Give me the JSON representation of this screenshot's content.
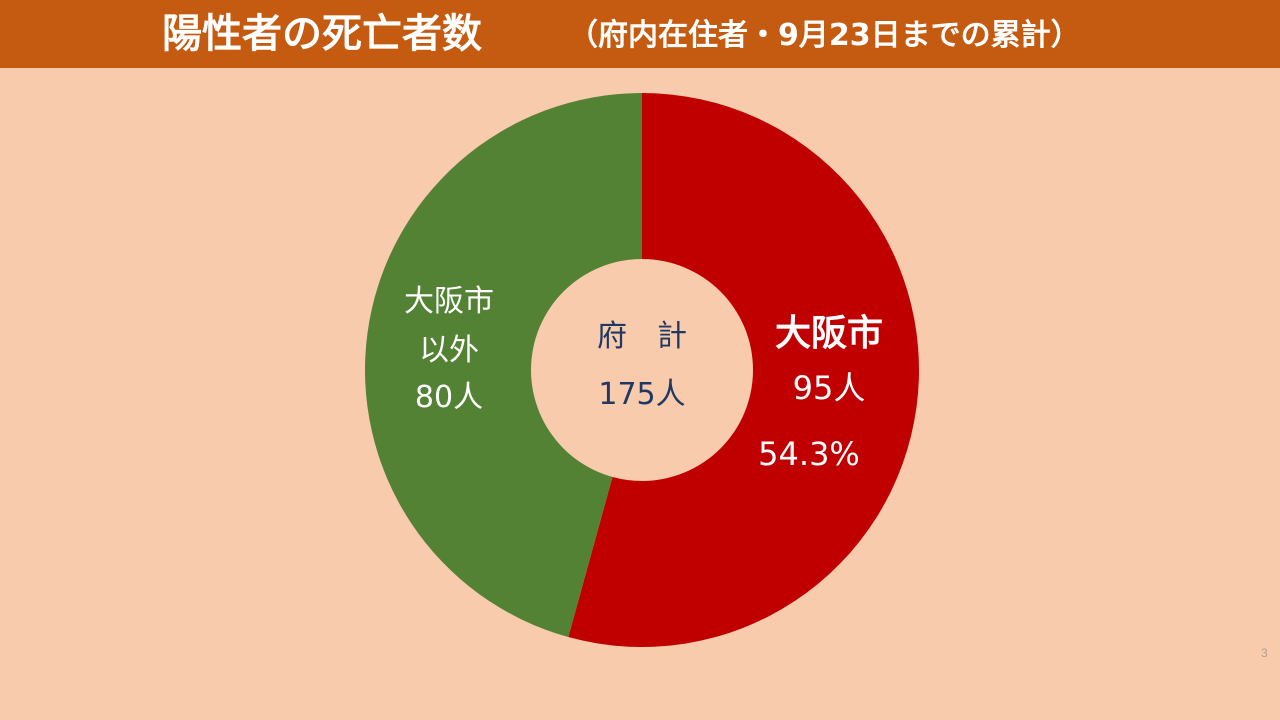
{
  "title": {
    "main": "陽性者の死亡者数",
    "sub": "（府内在住者・9月23日までの累計）"
  },
  "chart_data": {
    "type": "pie",
    "style": "donut",
    "total": {
      "label": "府　計",
      "value": 175,
      "value_text": "175人"
    },
    "slices": [
      {
        "name": "大阪市",
        "value": 95,
        "value_text": "95人",
        "percent_text": "54.3%",
        "color": "#c00000"
      },
      {
        "name_lines": [
          "大阪市",
          "以外"
        ],
        "value": 80,
        "value_text": "80人",
        "color": "#548235"
      }
    ]
  },
  "page_number": "3"
}
